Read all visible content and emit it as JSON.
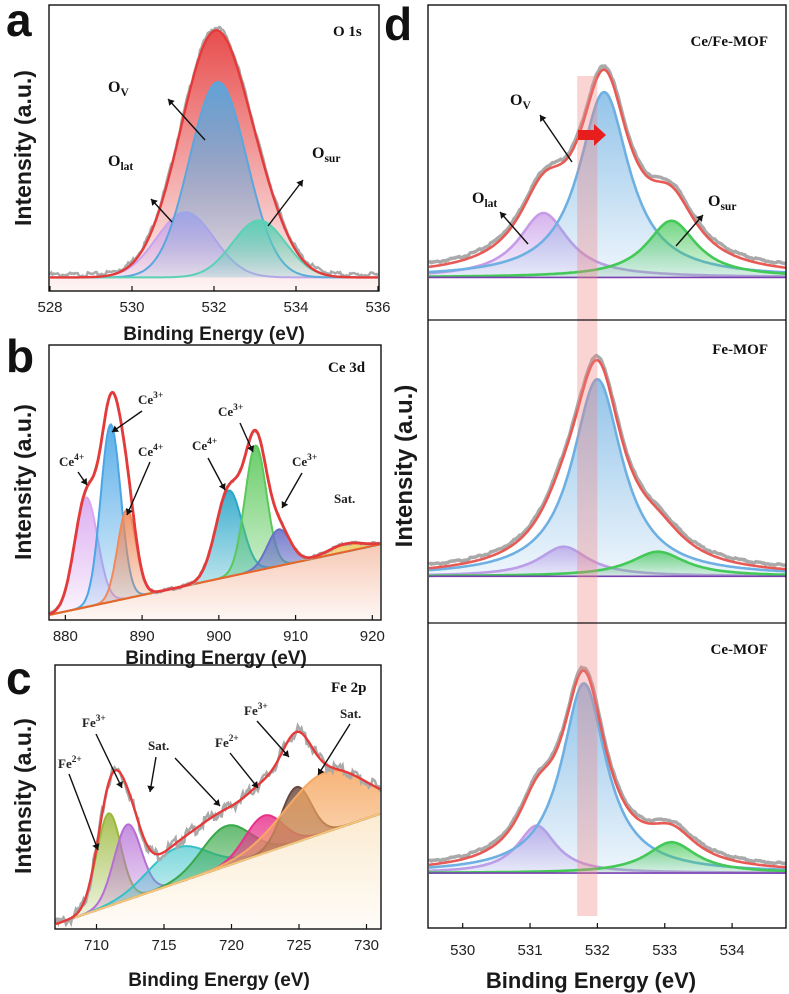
{
  "chart_data": [
    {
      "panel": "a",
      "type": "area",
      "title": "O 1s",
      "xlabel": "Binding Energy (eV)",
      "ylabel": "Intensity (a.u.)",
      "xlim": [
        528,
        536
      ],
      "xticks": [
        "528",
        "530",
        "532",
        "534",
        "536"
      ],
      "ylim": [
        0,
        1
      ],
      "series": [
        {
          "name": "O_lat",
          "type": "gaussian",
          "center": 531.3,
          "width": 0.7,
          "amplitude": 0.24,
          "color": "#c9a3ee"
        },
        {
          "name": "O_V",
          "type": "gaussian",
          "center": 532.1,
          "width": 0.7,
          "amplitude": 0.72,
          "color": "#5aa6de"
        },
        {
          "name": "O_sur",
          "type": "gaussian",
          "center": 533.1,
          "width": 0.65,
          "amplitude": 0.21,
          "color": "#5ad1b4"
        },
        {
          "name": "Envelope",
          "type": "sum",
          "color": "#e53a3a"
        }
      ],
      "annotations": [
        {
          "base": "O",
          "sub": "V",
          "target": "O_V"
        },
        {
          "base": "O",
          "sub": "lat",
          "target": "O_lat"
        },
        {
          "base": "O",
          "sub": "sur",
          "target": "O_sur"
        }
      ]
    },
    {
      "panel": "b",
      "type": "area",
      "title": "Ce 3d",
      "xlabel": "Binding Energy (eV)",
      "ylabel": "Intensity (a.u.)",
      "xlim": [
        878,
        921
      ],
      "xticks": [
        "880",
        "890",
        "900",
        "910",
        "920"
      ],
      "ylim": [
        0,
        1
      ],
      "series": [
        {
          "name": "Ce4+ (882.7)",
          "type": "gaussian",
          "center": 882.7,
          "width": 1.5,
          "amplitude": 0.42,
          "color": "#d9a6f0"
        },
        {
          "name": "Ce3+ (885.9)",
          "type": "gaussian",
          "center": 885.9,
          "width": 1.3,
          "amplitude": 0.68,
          "color": "#4aa6e6"
        },
        {
          "name": "Ce4+ (888.0)",
          "type": "gaussian",
          "center": 888.0,
          "width": 1.2,
          "amplitude": 0.34,
          "color": "#f08a5a"
        },
        {
          "name": "Ce4+ (901.3)",
          "type": "gaussian",
          "center": 901.3,
          "width": 1.7,
          "amplitude": 0.33,
          "color": "#2aa7c8"
        },
        {
          "name": "Ce3+ (904.8)",
          "type": "gaussian",
          "center": 904.8,
          "width": 1.4,
          "amplitude": 0.48,
          "color": "#5ac85a"
        },
        {
          "name": "Ce3+ (907.8)",
          "type": "gaussian",
          "center": 907.8,
          "width": 1.5,
          "amplitude": 0.14,
          "color": "#6a72c8"
        },
        {
          "name": "Sat. (916.5)",
          "type": "gaussian",
          "center": 916.5,
          "width": 2.2,
          "amplitude": 0.03,
          "color": "#f0c860"
        },
        {
          "name": "Background",
          "type": "line",
          "from": [
            878,
            0.02
          ],
          "to": [
            921,
            0.29
          ],
          "color": "#e8642a"
        },
        {
          "name": "Envelope",
          "type": "sum",
          "color": "#e53a3a"
        }
      ],
      "annotations": [
        {
          "text": "Ce",
          "sup": "4+"
        },
        {
          "text": "Ce",
          "sup": "3+"
        },
        {
          "text": "Ce",
          "sup": "4+"
        },
        {
          "text": "Ce",
          "sup": "4+"
        },
        {
          "text": "Ce",
          "sup": "3+"
        },
        {
          "text": "Ce",
          "sup": "3+"
        },
        {
          "text": "Sat."
        }
      ]
    },
    {
      "panel": "c",
      "type": "area",
      "title": "Fe 2p",
      "xlabel": "Binding Energy (eV)",
      "ylabel": "Intensity (a.u.)",
      "xlim": [
        707,
        731
      ],
      "xticks": [
        "710",
        "715",
        "720",
        "725",
        "730"
      ],
      "ylim": [
        0,
        1
      ],
      "series": [
        {
          "name": "Fe2+ (710.9)",
          "type": "gaussian",
          "center": 710.9,
          "width": 0.9,
          "amplitude": 0.37,
          "color": "#9ab83a"
        },
        {
          "name": "Fe3+ (712.3)",
          "type": "gaussian",
          "center": 712.3,
          "width": 1.0,
          "amplitude": 0.3,
          "color": "#b66ed6"
        },
        {
          "name": "Sat. (716.0)",
          "type": "gaussian",
          "center": 716.0,
          "width": 2.2,
          "amplitude": 0.14,
          "color": "#34c2c8"
        },
        {
          "name": "Sat. (719.6)",
          "type": "gaussian",
          "center": 719.6,
          "width": 1.8,
          "amplitude": 0.16,
          "color": "#3aa84a"
        },
        {
          "name": "Fe2+ (722.4)",
          "type": "gaussian",
          "center": 722.4,
          "width": 1.4,
          "amplitude": 0.15,
          "color": "#e8328a"
        },
        {
          "name": "Fe3+ (724.8)",
          "type": "gaussian",
          "center": 724.8,
          "width": 1.1,
          "amplitude": 0.22,
          "color": "#6a4a3e"
        },
        {
          "name": "Sat. (727.0)",
          "type": "gaussian",
          "center": 727.0,
          "width": 3.0,
          "amplitude": 0.24,
          "color": "#f6a862"
        },
        {
          "name": "Background",
          "type": "line",
          "from": [
            707,
            0.02
          ],
          "to": [
            731,
            0.46
          ],
          "color": "#f4c67a"
        },
        {
          "name": "Envelope",
          "type": "sum",
          "color": "#e53a3a"
        }
      ],
      "annotations": [
        {
          "text": "Fe",
          "sup": "2+"
        },
        {
          "text": "Fe",
          "sup": "3+"
        },
        {
          "text": "Sat."
        },
        {
          "text": "Fe",
          "sup": "2+"
        },
        {
          "text": "Fe",
          "sup": "3+"
        },
        {
          "text": "Sat."
        }
      ]
    },
    {
      "panel": "d",
      "type": "area",
      "xlabel": "Binding Energy (eV)",
      "ylabel": "Intensity (a.u.)",
      "xlim": [
        529.5,
        534.8
      ],
      "xticks": [
        "530",
        "531",
        "532",
        "533",
        "534"
      ],
      "highlight_band": [
        531.7,
        532.0
      ],
      "subplots": [
        {
          "title": "Ce/Fe-MOF",
          "ylim": [
            0,
            1
          ],
          "series": [
            {
              "name": "O_lat",
              "type": "lorentzian",
              "center": 531.2,
              "width": 0.45,
              "amplitude": 0.25,
              "color": "#c89be8"
            },
            {
              "name": "O_V",
              "type": "lorentzian",
              "center": 532.1,
              "width": 0.45,
              "amplitude": 0.72,
              "color": "#6fb0e2"
            },
            {
              "name": "O_sur",
              "type": "lorentzian",
              "center": 533.1,
              "width": 0.45,
              "amplitude": 0.22,
              "color": "#44c858"
            },
            {
              "name": "Envelope",
              "type": "sum",
              "color": "#e85a55"
            }
          ],
          "annotations": [
            {
              "base": "O",
              "sub": "V"
            },
            {
              "base": "O",
              "sub": "lat"
            },
            {
              "base": "O",
              "sub": "sur"
            }
          ]
        },
        {
          "title": "Fe-MOF",
          "ylim": [
            0,
            1
          ],
          "series": [
            {
              "name": "O_lat",
              "type": "lorentzian",
              "center": 531.5,
              "width": 0.45,
              "amplitude": 0.12,
              "color": "#c89be8"
            },
            {
              "name": "O_V",
              "type": "lorentzian",
              "center": 532.0,
              "width": 0.45,
              "amplitude": 0.8,
              "color": "#6fb0e2"
            },
            {
              "name": "O_sur",
              "type": "lorentzian",
              "center": 532.9,
              "width": 0.5,
              "amplitude": 0.1,
              "color": "#44c858"
            },
            {
              "name": "Envelope",
              "type": "sum",
              "color": "#e85a55"
            }
          ]
        },
        {
          "title": "Ce-MOF",
          "ylim": [
            0,
            1
          ],
          "series": [
            {
              "name": "O_lat",
              "type": "lorentzian",
              "center": 531.1,
              "width": 0.35,
              "amplitude": 0.2,
              "color": "#c89be8"
            },
            {
              "name": "O_V",
              "type": "lorentzian",
              "center": 531.8,
              "width": 0.4,
              "amplitude": 0.8,
              "color": "#6fb0e2"
            },
            {
              "name": "O_sur",
              "type": "lorentzian",
              "center": 533.1,
              "width": 0.45,
              "amplitude": 0.13,
              "color": "#44c858"
            },
            {
              "name": "Envelope",
              "type": "sum",
              "color": "#e85a55"
            }
          ]
        }
      ]
    }
  ]
}
